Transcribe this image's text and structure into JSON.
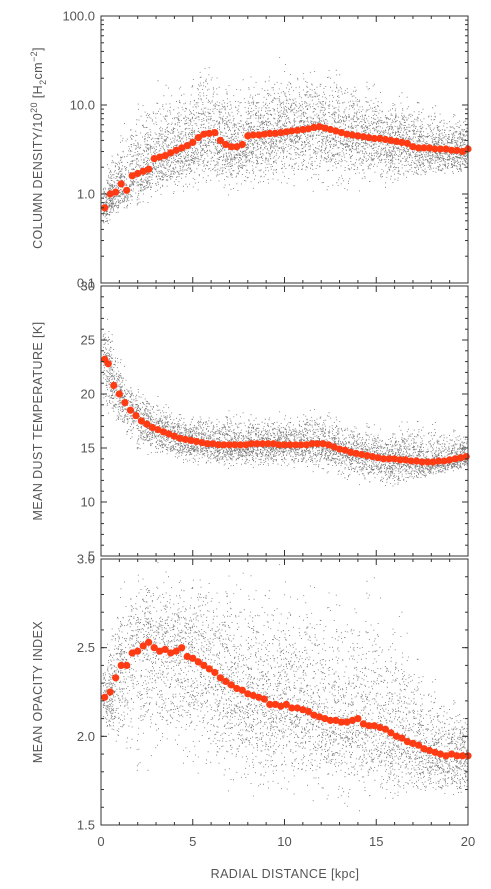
{
  "chart_data": [
    {
      "type": "scatter",
      "ylabel_main": "COLUMN DENSITY/10",
      "ylabel_sup": "20",
      "ylabel_unit_open": " [H",
      "ylabel_unit_sub": "2",
      "ylabel_unit_cm": "cm",
      "ylabel_unit_sup": "−2",
      "ylabel_unit_close": "]",
      "yscale": "log",
      "ylim": [
        0.1,
        100
      ],
      "yticks": [
        0.1,
        1,
        10,
        100
      ],
      "yticklabels": [
        "0.1",
        "1.0",
        "10.0",
        "100.0"
      ],
      "xlim": [
        0,
        20
      ],
      "scatter_color": "#000000",
      "profile_color": "#ff3b14",
      "scatter_envelope": {
        "x": [
          0.2,
          1,
          2,
          3,
          4,
          5,
          6,
          7,
          8,
          9,
          10,
          11,
          12,
          13,
          14,
          15,
          16,
          17,
          18,
          19,
          20
        ],
        "low": [
          0.4,
          0.5,
          0.6,
          0.7,
          0.8,
          0.8,
          0.9,
          0.9,
          1.0,
          1.0,
          1.0,
          1.0,
          0.9,
          0.9,
          1.0,
          1.0,
          1.0,
          1.2,
          1.3,
          1.4,
          1.5
        ],
        "high": [
          2,
          5,
          15,
          20,
          25,
          30,
          45,
          20,
          25,
          30,
          40,
          30,
          35,
          40,
          25,
          20,
          20,
          15,
          12,
          10,
          10
        ]
      },
      "profile": {
        "x": [
          0.2,
          0.5,
          0.8,
          1.1,
          1.4,
          1.7,
          2.0,
          2.3,
          2.6,
          2.9,
          3.2,
          3.5,
          3.8,
          4.1,
          4.4,
          4.7,
          5.0,
          5.3,
          5.6,
          5.9,
          6.2,
          6.5,
          6.8,
          7.1,
          7.4,
          7.7,
          8.0,
          8.3,
          8.6,
          8.9,
          9.2,
          9.5,
          9.8,
          10.1,
          10.4,
          10.7,
          11.0,
          11.3,
          11.6,
          11.9,
          12.2,
          12.5,
          12.8,
          13.1,
          13.4,
          13.7,
          14.0,
          14.3,
          14.6,
          14.9,
          15.2,
          15.5,
          15.8,
          16.1,
          16.4,
          16.7,
          17.0,
          17.3,
          17.6,
          17.9,
          18.2,
          18.5,
          18.8,
          19.1,
          19.4,
          19.7,
          20.0
        ],
        "y": [
          0.7,
          1.0,
          1.05,
          1.3,
          1.1,
          1.6,
          1.7,
          1.8,
          1.9,
          2.5,
          2.6,
          2.7,
          2.9,
          3.1,
          3.3,
          3.5,
          3.8,
          4.3,
          4.7,
          4.8,
          4.9,
          4.0,
          3.6,
          3.4,
          3.4,
          3.6,
          4.5,
          4.6,
          4.6,
          4.7,
          4.8,
          4.8,
          4.9,
          5.0,
          5.1,
          5.2,
          5.3,
          5.4,
          5.6,
          5.7,
          5.5,
          5.3,
          5.1,
          4.9,
          4.7,
          4.6,
          4.5,
          4.4,
          4.3,
          4.2,
          4.2,
          4.1,
          4.0,
          3.9,
          3.8,
          3.7,
          3.4,
          3.3,
          3.3,
          3.3,
          3.2,
          3.2,
          3.2,
          3.1,
          3.1,
          3.0,
          3.2
        ]
      }
    },
    {
      "type": "scatter",
      "ylabel": "MEAN DUST TEMPERATURE [K]",
      "ylim": [
        5,
        30
      ],
      "yticks": [
        5,
        10,
        15,
        20,
        25,
        30
      ],
      "yticklabels": [
        "5",
        "10",
        "15",
        "20",
        "25",
        "30"
      ],
      "xlim": [
        0,
        20
      ],
      "scatter_color": "#000000",
      "profile_color": "#ff3b14",
      "scatter_envelope": {
        "x": [
          0.2,
          0.5,
          1,
          1.5,
          2,
          3,
          4,
          5,
          6,
          7,
          8,
          9,
          10,
          11,
          12,
          13,
          14,
          15,
          16,
          17,
          18,
          19,
          20
        ],
        "low": [
          18,
          17,
          15.5,
          14.5,
          14,
          13.5,
          13.2,
          13,
          13,
          13,
          13,
          13,
          13,
          12.8,
          12.5,
          12,
          11.5,
          11,
          10.8,
          11.5,
          12,
          12.5,
          13
        ],
        "high": [
          28,
          27,
          24,
          22,
          21,
          20,
          19,
          18.5,
          18.5,
          19,
          18.5,
          18.5,
          18.5,
          19,
          19.5,
          18.5,
          18,
          17.5,
          18,
          18.5,
          18,
          17.5,
          17
        ]
      },
      "profile": {
        "x": [
          0.2,
          0.4,
          0.7,
          1.0,
          1.3,
          1.6,
          1.9,
          2.2,
          2.5,
          2.8,
          3.1,
          3.4,
          3.7,
          4.0,
          4.3,
          4.6,
          4.9,
          5.2,
          5.5,
          5.8,
          6.1,
          6.4,
          6.7,
          7.0,
          7.3,
          7.6,
          7.9,
          8.2,
          8.5,
          8.8,
          9.1,
          9.4,
          9.7,
          10.0,
          10.3,
          10.6,
          10.9,
          11.2,
          11.5,
          11.8,
          12.1,
          12.4,
          12.7,
          13.0,
          13.3,
          13.6,
          13.9,
          14.2,
          14.5,
          14.8,
          15.1,
          15.4,
          15.7,
          16.0,
          16.3,
          16.6,
          16.9,
          17.2,
          17.5,
          17.8,
          18.1,
          18.4,
          18.7,
          19.0,
          19.3,
          19.6,
          19.9
        ],
        "y": [
          23.2,
          22.8,
          20.8,
          20.0,
          19.2,
          18.5,
          18.0,
          17.5,
          17.2,
          16.9,
          16.7,
          16.5,
          16.3,
          16.1,
          15.9,
          15.8,
          15.7,
          15.6,
          15.5,
          15.4,
          15.4,
          15.3,
          15.3,
          15.3,
          15.3,
          15.3,
          15.3,
          15.4,
          15.4,
          15.4,
          15.4,
          15.4,
          15.3,
          15.3,
          15.3,
          15.3,
          15.3,
          15.3,
          15.4,
          15.4,
          15.4,
          15.3,
          15.1,
          14.9,
          14.8,
          14.6,
          14.5,
          14.4,
          14.3,
          14.2,
          14.1,
          14.0,
          14.0,
          14.0,
          13.9,
          13.9,
          13.8,
          13.8,
          13.7,
          13.7,
          13.7,
          13.8,
          13.8,
          13.9,
          14.0,
          14.1,
          14.2
        ]
      }
    },
    {
      "type": "scatter",
      "ylabel": "MEAN OPACITY INDEX",
      "ylim": [
        1.5,
        3.0
      ],
      "yticks": [
        1.5,
        2.0,
        2.5,
        3.0
      ],
      "yticklabels": [
        "1.5",
        "2.0",
        "2.5",
        "3.0"
      ],
      "xlim": [
        0,
        20
      ],
      "xticks": [
        0,
        5,
        10,
        15,
        20
      ],
      "xticklabels": [
        "0",
        "5",
        "10",
        "15",
        "20"
      ],
      "xlabel": "RADIAL DISTANCE [kpc]",
      "scatter_color": "#000000",
      "profile_color": "#ff3b14",
      "scatter_envelope": {
        "x": [
          0.2,
          1,
          2,
          3,
          4,
          5,
          6,
          7,
          8,
          9,
          10,
          11,
          12,
          13,
          14,
          15,
          16,
          17,
          18,
          19,
          20
        ],
        "low": [
          2.05,
          1.7,
          1.6,
          1.65,
          1.7,
          1.65,
          1.65,
          1.65,
          1.6,
          1.6,
          1.6,
          1.6,
          1.6,
          1.55,
          1.55,
          1.55,
          1.55,
          1.6,
          1.6,
          1.6,
          1.6
        ],
        "high": [
          2.5,
          2.9,
          3.0,
          3.0,
          3.0,
          3.0,
          3.0,
          3.0,
          3.0,
          3.0,
          3.0,
          3.0,
          3.0,
          3.0,
          3.0,
          3.0,
          3.0,
          2.6,
          2.4,
          2.3,
          2.2
        ]
      },
      "profile": {
        "x": [
          0.2,
          0.5,
          0.8,
          1.1,
          1.4,
          1.7,
          2.0,
          2.3,
          2.6,
          2.9,
          3.2,
          3.5,
          3.8,
          4.1,
          4.4,
          4.7,
          5.0,
          5.3,
          5.6,
          5.9,
          6.2,
          6.5,
          6.8,
          7.1,
          7.4,
          7.7,
          8.0,
          8.3,
          8.6,
          8.9,
          9.2,
          9.5,
          9.8,
          10.1,
          10.4,
          10.7,
          11.0,
          11.3,
          11.6,
          11.9,
          12.2,
          12.5,
          12.8,
          13.1,
          13.4,
          13.7,
          14.0,
          14.3,
          14.6,
          14.9,
          15.2,
          15.5,
          15.8,
          16.1,
          16.4,
          16.7,
          17.0,
          17.3,
          17.6,
          17.9,
          18.2,
          18.5,
          18.8,
          19.1,
          19.4,
          19.7,
          20.0
        ],
        "y": [
          2.22,
          2.25,
          2.33,
          2.4,
          2.4,
          2.47,
          2.48,
          2.51,
          2.53,
          2.5,
          2.48,
          2.49,
          2.47,
          2.48,
          2.5,
          2.45,
          2.44,
          2.42,
          2.4,
          2.38,
          2.36,
          2.33,
          2.31,
          2.29,
          2.27,
          2.26,
          2.24,
          2.23,
          2.22,
          2.21,
          2.18,
          2.18,
          2.17,
          2.18,
          2.16,
          2.16,
          2.15,
          2.14,
          2.12,
          2.11,
          2.1,
          2.09,
          2.09,
          2.08,
          2.08,
          2.09,
          2.1,
          2.07,
          2.06,
          2.06,
          2.05,
          2.04,
          2.02,
          2.0,
          1.99,
          1.97,
          1.96,
          1.95,
          1.93,
          1.92,
          1.91,
          1.9,
          1.89,
          1.9,
          1.89,
          1.89,
          1.89
        ]
      }
    }
  ]
}
